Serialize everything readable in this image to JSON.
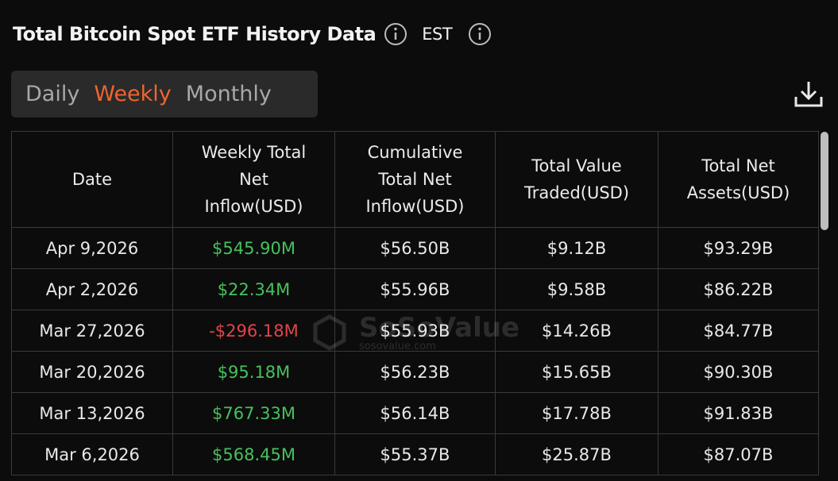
{
  "header": {
    "title": "Total Bitcoin Spot ETF History Data",
    "timezone": "EST"
  },
  "tabs": {
    "items": [
      "Daily",
      "Weekly",
      "Monthly"
    ],
    "active": 1
  },
  "watermark": {
    "brand": "SoSoValue",
    "site": "sosovalue.com"
  },
  "table": {
    "columns": [
      "Date",
      "Weekly Total Net Inflow(USD)",
      "Cumulative Total Net Inflow(USD)",
      "Total Value Traded(USD)",
      "Total Net Assets(USD)"
    ],
    "rows": [
      [
        "Apr 9,2026",
        "$545.90M",
        "$56.50B",
        "$9.12B",
        "$93.29B"
      ],
      [
        "Apr 2,2026",
        "$22.34M",
        "$55.96B",
        "$9.58B",
        "$86.22B"
      ],
      [
        "Mar 27,2026",
        "-$296.18M",
        "$55.93B",
        "$14.26B",
        "$84.77B"
      ],
      [
        "Mar 20,2026",
        "$95.18M",
        "$56.23B",
        "$15.65B",
        "$90.30B"
      ],
      [
        "Mar 13,2026",
        "$767.33M",
        "$56.14B",
        "$17.78B",
        "$91.83B"
      ],
      [
        "Mar 6,2026",
        "$568.45M",
        "$55.37B",
        "$25.87B",
        "$87.07B"
      ]
    ]
  }
}
